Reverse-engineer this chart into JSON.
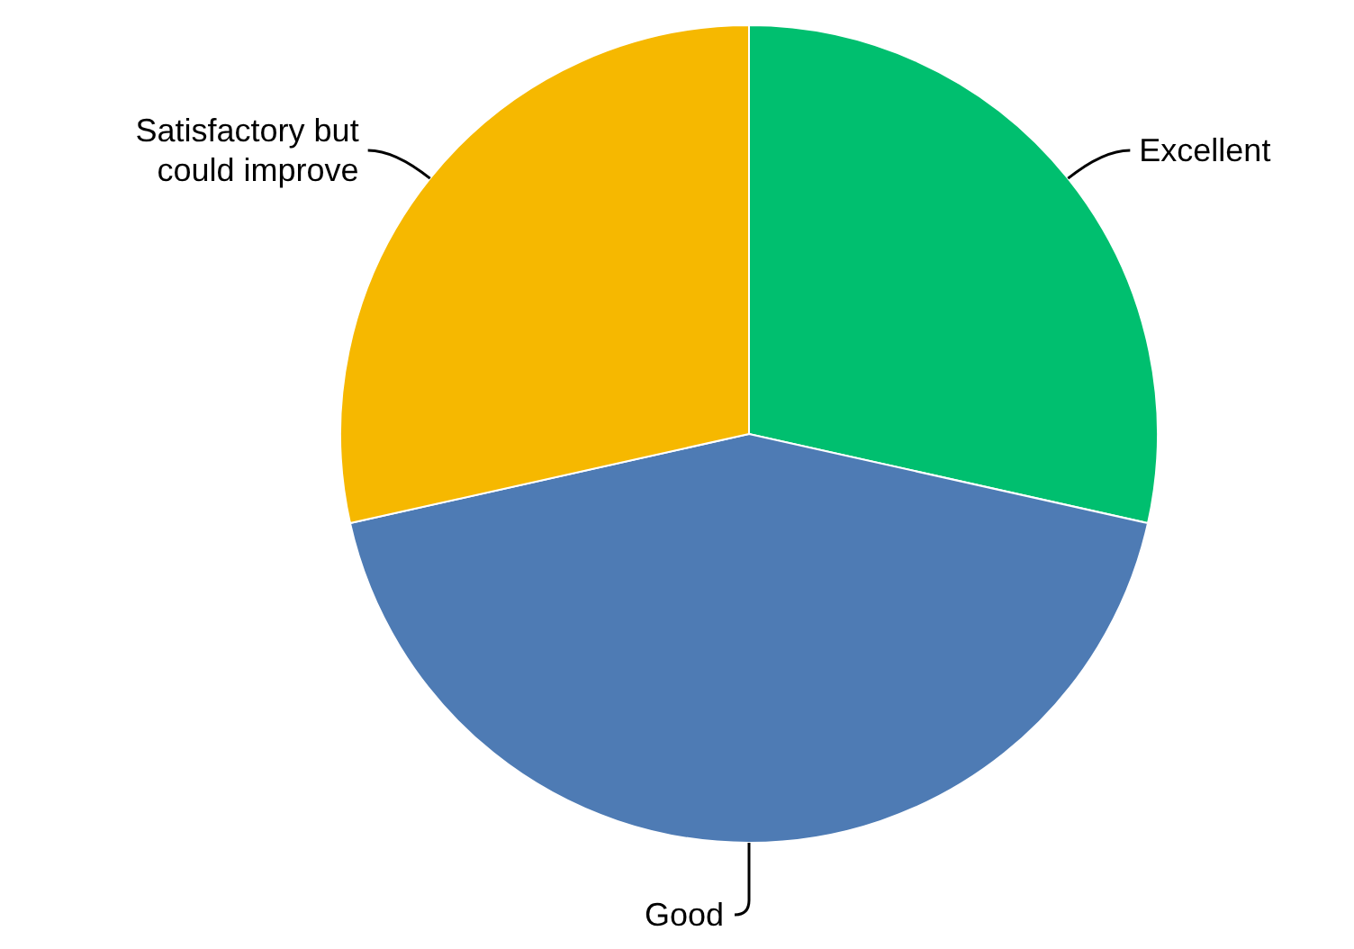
{
  "chart_data": {
    "type": "pie",
    "categories": [
      "Excellent",
      "Good",
      "Satisfactory but could improve"
    ],
    "values": [
      28.5,
      43,
      28.5
    ],
    "colors": [
      "#00bf6f",
      "#4e7bb4",
      "#f6b800"
    ],
    "legend": false
  }
}
